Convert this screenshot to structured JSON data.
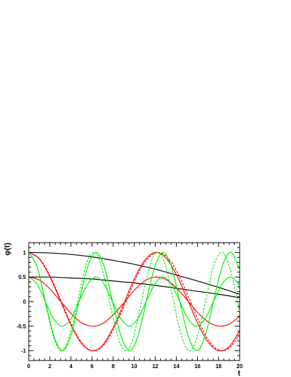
{
  "chart_data": {
    "type": "line",
    "xlabel": "t",
    "ylabel": "φ(t)",
    "xlim": [
      0,
      20
    ],
    "ylim": [
      -1.2,
      1.2
    ],
    "x_ticks": [
      0,
      2,
      4,
      6,
      8,
      10,
      12,
      14,
      16,
      18,
      20
    ],
    "x_tick_labels": [
      "0",
      "2",
      "4",
      "6",
      "8",
      "10",
      "12",
      "14",
      "16",
      "18",
      "20"
    ],
    "y_ticks": [
      -1,
      -0.5,
      0,
      0.5,
      1
    ],
    "y_tick_labels": [
      "-1",
      "-0.5",
      "0",
      "0.5",
      "1"
    ],
    "grid": false,
    "series": [
      {
        "color": "#000000",
        "style": "solid",
        "x": [
          0,
          2,
          4,
          6,
          8,
          10,
          12,
          14,
          16,
          18,
          20
        ],
        "y": [
          1.0,
          0.99,
          0.96,
          0.91,
          0.84,
          0.76,
          0.66,
          0.54,
          0.42,
          0.29,
          0.15
        ]
      },
      {
        "color": "#000000",
        "style": "solid",
        "x": [
          0,
          2,
          4,
          6,
          8,
          10,
          12,
          14,
          16,
          18,
          20
        ],
        "y": [
          0.5,
          0.5,
          0.48,
          0.46,
          0.42,
          0.38,
          0.33,
          0.27,
          0.21,
          0.15,
          0.08
        ]
      },
      {
        "color": "#ff0000",
        "style": "solid",
        "x": [
          0,
          1,
          2,
          3,
          4,
          5,
          6,
          7,
          8,
          9,
          10,
          11,
          12,
          13,
          14,
          15,
          16,
          17,
          18,
          19,
          20
        ],
        "y": [
          1.0,
          0.87,
          0.51,
          0.02,
          -0.48,
          -0.85,
          -1.0,
          -0.89,
          -0.53,
          -0.05,
          0.46,
          0.84,
          1.0,
          0.89,
          0.55,
          0.07,
          -0.43,
          -0.82,
          -1.0,
          -0.92,
          -0.59
        ]
      },
      {
        "color": "#ff0000",
        "style": "solid",
        "x": [
          0,
          1,
          2,
          3,
          4,
          5,
          6,
          7,
          8,
          9,
          10,
          11,
          12,
          13,
          14,
          15,
          16,
          17,
          18,
          19,
          20
        ],
        "y": [
          0.5,
          0.44,
          0.26,
          0.01,
          -0.24,
          -0.43,
          -0.5,
          -0.45,
          -0.27,
          -0.03,
          0.23,
          0.42,
          0.5,
          0.45,
          0.28,
          0.04,
          -0.22,
          -0.41,
          -0.5,
          -0.46,
          -0.3
        ]
      },
      {
        "color": "#ff0000",
        "style": "dashed",
        "x": [
          0,
          1,
          2,
          3,
          4,
          5,
          6,
          7,
          8,
          9,
          10,
          11,
          12,
          13,
          14,
          15,
          16,
          17,
          18,
          19,
          20
        ],
        "y": [
          1.0,
          0.88,
          0.53,
          0.05,
          -0.45,
          -0.83,
          -1.0,
          -0.91,
          -0.58,
          -0.11,
          0.4,
          0.8,
          0.99,
          0.93,
          0.63,
          0.17,
          -0.34,
          -0.77,
          -0.98,
          -0.95,
          -0.67
        ]
      },
      {
        "color": "#00ee00",
        "style": "solid",
        "x": [
          0,
          0.8,
          1.6,
          2.4,
          3.2,
          4.0,
          4.8,
          5.6,
          6.4,
          7.2,
          8.0,
          8.8,
          9.6,
          10.4,
          11.2,
          12.0,
          12.8,
          13.6,
          14.4,
          15.2,
          16.0,
          16.8,
          17.6,
          18.4,
          19.2,
          20.0
        ],
        "y": [
          1.0,
          0.7,
          -0.02,
          -0.71,
          -1.0,
          -0.69,
          0.03,
          0.72,
          1.0,
          0.68,
          -0.05,
          -0.73,
          -1.0,
          -0.67,
          0.06,
          0.74,
          1.0,
          0.66,
          -0.07,
          -0.75,
          -1.0,
          -0.65,
          0.08,
          0.75,
          1.0,
          0.64
        ]
      },
      {
        "color": "#00ee00",
        "style": "solid",
        "x": [
          0,
          0.8,
          1.6,
          2.4,
          3.2,
          4.0,
          4.8,
          5.6,
          6.4,
          7.2,
          8.0,
          8.8,
          9.6,
          10.4,
          11.2,
          12.0,
          12.8,
          13.6,
          14.4,
          15.2,
          16.0,
          16.8,
          17.6,
          18.4,
          19.2,
          20.0
        ],
        "y": [
          0.5,
          0.35,
          -0.01,
          -0.36,
          -0.5,
          -0.35,
          0.02,
          0.36,
          0.5,
          0.34,
          -0.03,
          -0.37,
          -0.5,
          -0.33,
          0.03,
          0.37,
          0.5,
          0.33,
          -0.04,
          -0.38,
          -0.5,
          -0.32,
          0.04,
          0.38,
          0.5,
          0.32
        ]
      },
      {
        "color": "#00ee00",
        "style": "dashed",
        "x": [
          0,
          0.8,
          1.6,
          2.4,
          3.2,
          4.0,
          4.8,
          5.6,
          6.4,
          7.2,
          8.0,
          8.8,
          9.6,
          10.4,
          11.2,
          12.0,
          12.8,
          13.6,
          14.4,
          15.2,
          16.0,
          16.8,
          17.6,
          18.4,
          19.2,
          20.0
        ],
        "y": [
          1.0,
          0.7,
          -0.05,
          -0.76,
          -1.0,
          -0.6,
          0.17,
          0.85,
          0.98,
          0.47,
          -0.33,
          -0.92,
          -0.92,
          -0.3,
          0.5,
          0.98,
          0.84,
          0.13,
          -0.64,
          -1.0,
          -0.71,
          0.05,
          0.77,
          1.0,
          0.58,
          -0.2
        ]
      }
    ]
  }
}
